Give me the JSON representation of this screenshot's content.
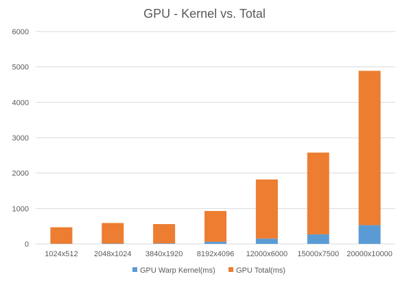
{
  "chart_data": {
    "type": "bar",
    "stacked": true,
    "title": "GPU - Kernel vs. Total",
    "categories": [
      "1024x512",
      "2048x1024",
      "3840x1920",
      "8192x4096",
      "12000x6000",
      "15000x7500",
      "20000x10000"
    ],
    "series": [
      {
        "name": "GPU Warp Kernel(ms)",
        "color": "#5b9bd5",
        "values": [
          5,
          10,
          15,
          60,
          150,
          270,
          530
        ]
      },
      {
        "name": "GPU Total(ms)",
        "color": "#ed7d31",
        "values": [
          465,
          580,
          545,
          870,
          1670,
          2310,
          4360
        ]
      }
    ],
    "ylim": [
      0,
      6000
    ],
    "yticks": [
      0,
      1000,
      2000,
      3000,
      4000,
      5000,
      6000
    ],
    "grid": true,
    "legend_position": "bottom"
  }
}
